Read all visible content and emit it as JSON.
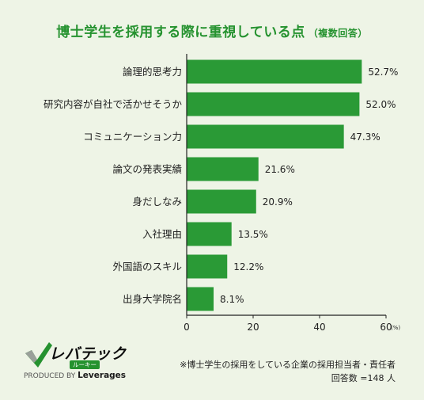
{
  "title": {
    "main": "博士学生を採用する際に重視している点",
    "sub": "（複数回答）"
  },
  "chart_data": {
    "type": "bar",
    "orientation": "horizontal",
    "categories": [
      "論理的思考力",
      "研究内容が自社で活かせそうか",
      "コミュニケーション力",
      "論文の発表実績",
      "身だしなみ",
      "入社理由",
      "外国語のスキル",
      "出身大学院名"
    ],
    "values": [
      52.7,
      52.0,
      47.3,
      21.6,
      20.9,
      13.5,
      12.2,
      8.1
    ],
    "value_labels": [
      "52.7%",
      "52.0%",
      "47.3%",
      "21.6%",
      "20.9%",
      "13.5%",
      "12.2%",
      "8.1%"
    ],
    "xlim": [
      0,
      60
    ],
    "xticks": [
      0,
      20,
      40,
      60
    ],
    "x_unit": "(%)",
    "bar_color": "#2a9a36",
    "grid": false
  },
  "logo": {
    "name": "レバテック",
    "tag": "ルーキー",
    "produced_by": "PRODUCED BY",
    "brand": "Leverages"
  },
  "notes": {
    "line1": "※博士学生の採用をしている企業の採用担当者・責任者",
    "line2": "回答数 =148 人"
  }
}
